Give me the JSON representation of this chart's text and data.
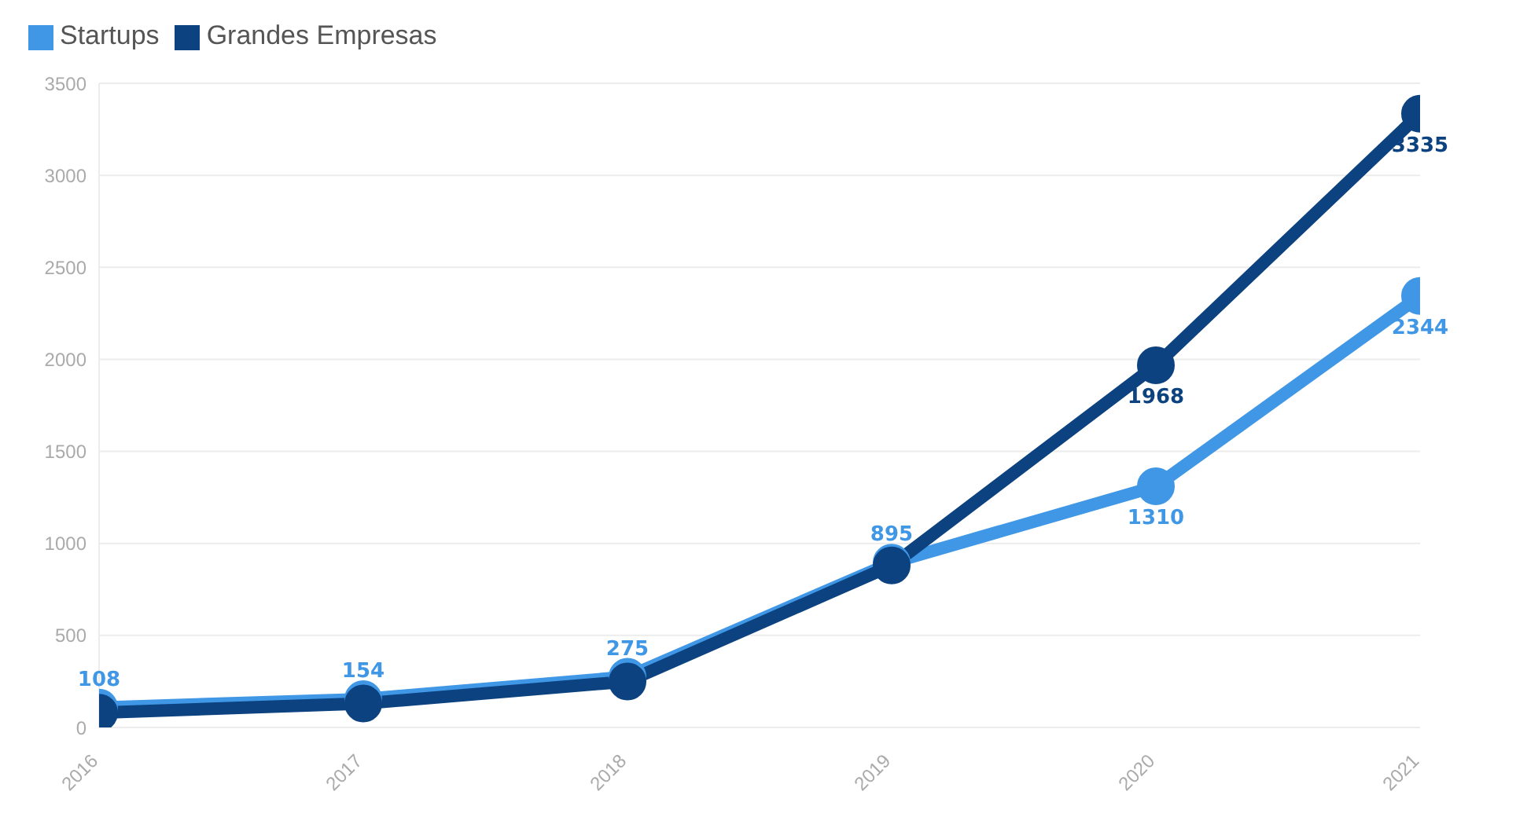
{
  "chart_data": {
    "type": "line",
    "categories": [
      "2016",
      "2017",
      "2018",
      "2019",
      "2020",
      "2021"
    ],
    "series": [
      {
        "name": "Startups",
        "color": "#3f97e6",
        "values": [
          108,
          154,
          275,
          895,
          1310,
          2344
        ],
        "value_labels": [
          "108",
          "154",
          "275",
          "895",
          "1310",
          "2344"
        ]
      },
      {
        "name": "Grandes Empresas",
        "color": "#0b427f",
        "values": [
          80,
          130,
          250,
          880,
          1968,
          3335
        ],
        "value_labels": [
          null,
          null,
          null,
          null,
          "1968",
          "3335"
        ]
      }
    ],
    "ylim": [
      0,
      3500
    ],
    "yticks": [
      0,
      500,
      1000,
      1500,
      2000,
      2500,
      3000,
      3500
    ],
    "grid": "y",
    "legend": "top left",
    "marker": "circle",
    "line_style": "solid"
  }
}
